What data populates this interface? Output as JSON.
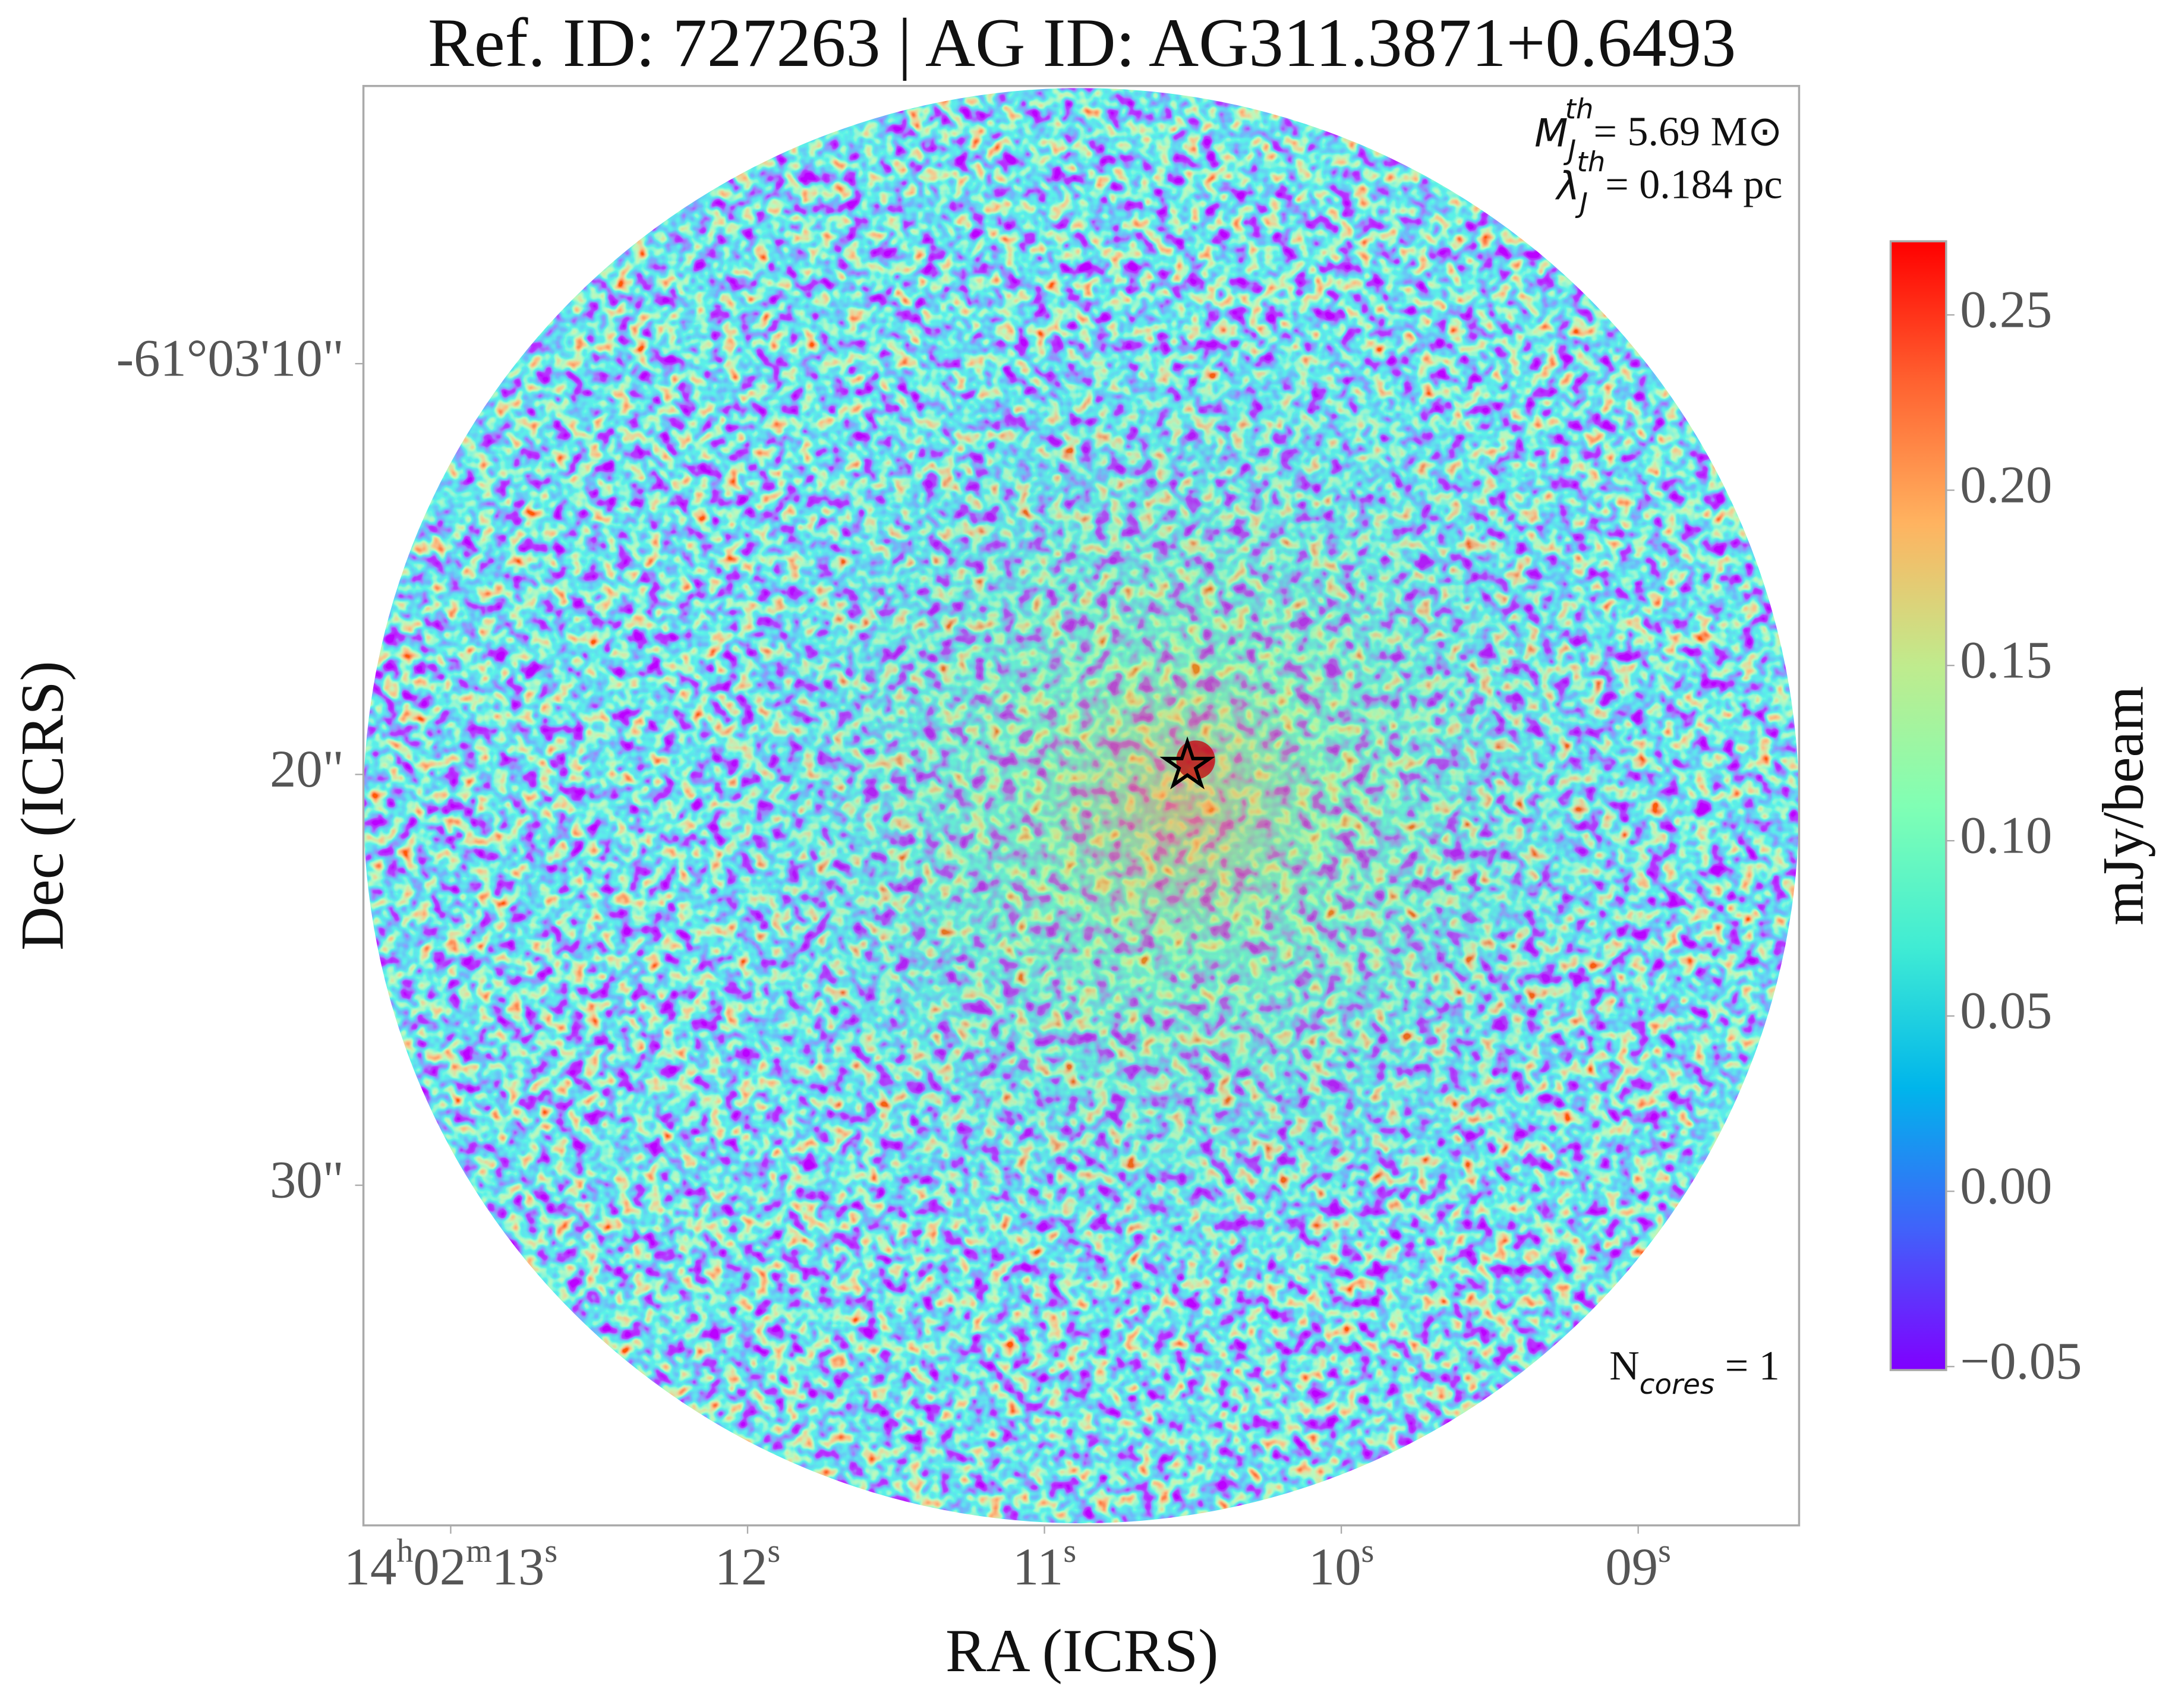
{
  "chart_data": {
    "type": "image",
    "title": "Ref. ID: 727263 | AG ID: AG311.3871+0.6493",
    "x_label": "RA (ICRS)",
    "y_label": "Dec (ICRS)",
    "xlim": [
      13.294,
      8.458
    ],
    "xticks": [
      {
        "value": 13,
        "label": "14h02m13s"
      },
      {
        "value": 12,
        "label": "12s"
      },
      {
        "value": 11,
        "label": "11s"
      },
      {
        "value": 10,
        "label": "10s"
      },
      {
        "value": 9,
        "label": "09s"
      }
    ],
    "ylim": [
      38.28,
      3.24
    ],
    "yticks": [
      {
        "value": 10,
        "label": "-61°03'10\""
      },
      {
        "value": 20,
        "label": "20\""
      },
      {
        "value": 30,
        "label": "30\""
      }
    ],
    "cmap": "rainbow",
    "colorbar": {
      "label": "mJy/beam",
      "lim": [
        -0.051,
        0.271
      ],
      "ticks": [
        {
          "value": -0.05,
          "label": "−0.05"
        },
        {
          "value": 0,
          "label": "0.00"
        },
        0.05,
        {
          "value": 0.1,
          "label": "0.10"
        },
        0.15,
        {
          "value": 0.2,
          "label": "0.20"
        },
        0.25
      ]
    },
    "annotations": [
      {
        "symbol": "M",
        "sub": "J",
        "sup": "th",
        "text": "= 5.69 M⊙"
      },
      {
        "symbol": "λ",
        "sub": "J",
        "sup": "th",
        "text": "= 0.184 pc"
      },
      {
        "symbol": "N",
        "sub": "cores",
        "text": " = 1"
      }
    ]
  }
}
